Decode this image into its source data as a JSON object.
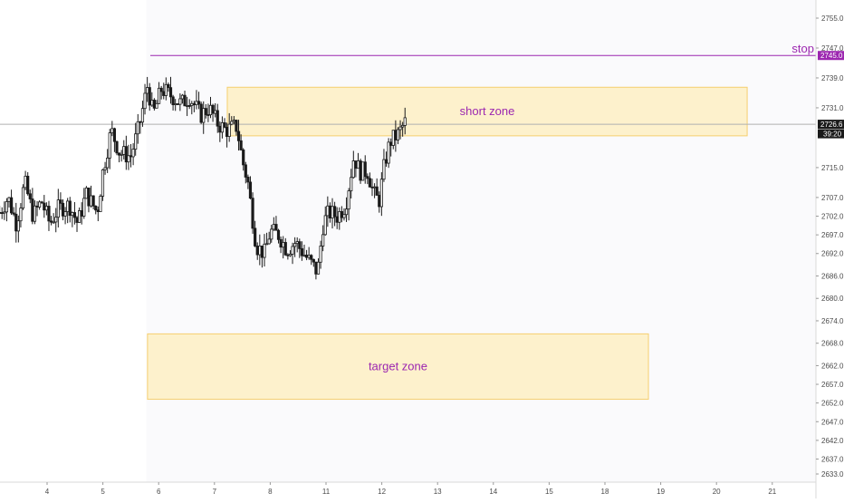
{
  "chart_data": {
    "type": "candlestick",
    "colors": {
      "background": "#ffffff",
      "candle": "#1a1a1a",
      "zone_fill": "#fdeec3",
      "zone_border": "#f5cf70",
      "stop_line": "#9c27b0",
      "current_price_line": "#b0b0b0",
      "price_tag_bg": "#1a1a1a",
      "stop_tag_bg": "#9c27b0",
      "axis_line": "#d9d9d9",
      "future_shade": "#fafafc"
    },
    "y_axis": {
      "range": [
        2630.0,
        2758.0
      ],
      "ticks": [
        "2755.0",
        "2747.0",
        "2739.0",
        "2731.0",
        "2715.0",
        "2707.0",
        "2702.0",
        "2697.0",
        "2692.0",
        "2686.0",
        "2680.0",
        "2674.0",
        "2668.0",
        "2662.0",
        "2657.0",
        "2652.0",
        "2647.0",
        "2642.0",
        "2637.0",
        "2633.0"
      ],
      "tick_values": [
        2755.0,
        2747.0,
        2739.0,
        2731.0,
        2715.0,
        2707.0,
        2702.0,
        2697.0,
        2692.0,
        2686.0,
        2680.0,
        2674.0,
        2668.0,
        2662.0,
        2657.0,
        2652.0,
        2647.0,
        2642.0,
        2637.0,
        2633.0
      ]
    },
    "x_axis": {
      "ticks": [
        "4",
        "5",
        "6",
        "7",
        "8",
        "11",
        "12",
        "13",
        "14",
        "15",
        "18",
        "19",
        "20",
        "21"
      ],
      "tick_positions": [
        0.0,
        1.0,
        2.0,
        3.0,
        4.0,
        5.0,
        6.0,
        7.0,
        8.0,
        9.0,
        10.0,
        11.0,
        12.0,
        13.0
      ],
      "range": [
        -0.85,
        13.5
      ]
    },
    "current_price": {
      "value": 2726.6,
      "label": "2726.6",
      "countdown": "39:20"
    },
    "stop": {
      "value": 2745.0,
      "label": "2745.0",
      "text": "stop",
      "x_start": 1.85
    },
    "zones": [
      {
        "name": "short zone",
        "x0": 3.23,
        "x1": 12.55,
        "y_top": 2736.5,
        "y_bottom": 2723.5
      },
      {
        "name": "target zone",
        "x0": 1.8,
        "x1": 10.78,
        "y_top": 2670.5,
        "y_bottom": 2653.0
      }
    ],
    "future_start_x": 1.78,
    "anchors": [
      [
        -0.85,
        2703.0
      ],
      [
        -0.7,
        2707.0
      ],
      [
        -0.55,
        2700.0
      ],
      [
        -0.4,
        2711.0
      ],
      [
        -0.25,
        2702.0
      ],
      [
        -0.1,
        2706.0
      ],
      [
        0.05,
        2700.0
      ],
      [
        0.2,
        2704.0
      ],
      [
        0.4,
        2705.0
      ],
      [
        0.55,
        2700.0
      ],
      [
        0.7,
        2708.0
      ],
      [
        0.9,
        2703.0
      ],
      [
        1.0,
        2714.0
      ],
      [
        1.15,
        2725.0
      ],
      [
        1.3,
        2719.0
      ],
      [
        1.5,
        2718.0
      ],
      [
        1.65,
        2726.0
      ],
      [
        1.8,
        2737.0
      ],
      [
        1.9,
        2729.0
      ],
      [
        2.05,
        2736.0
      ],
      [
        2.25,
        2734.0
      ],
      [
        2.4,
        2732.0
      ],
      [
        2.55,
        2734.0
      ],
      [
        2.75,
        2729.0
      ],
      [
        2.9,
        2731.0
      ],
      [
        3.05,
        2727.0
      ],
      [
        3.2,
        2725.0
      ],
      [
        3.4,
        2726.0
      ],
      [
        3.5,
        2717.0
      ],
      [
        3.6,
        2711.0
      ],
      [
        3.75,
        2694.0
      ],
      [
        3.9,
        2692.0
      ],
      [
        4.0,
        2698.0
      ],
      [
        4.15,
        2697.0
      ],
      [
        4.3,
        2693.0
      ],
      [
        4.45,
        2695.0
      ],
      [
        4.6,
        2692.0
      ],
      [
        4.7,
        2690.0
      ],
      [
        4.85,
        2687.0
      ],
      [
        4.95,
        2700.0
      ],
      [
        5.05,
        2703.0
      ],
      [
        5.2,
        2702.0
      ],
      [
        5.35,
        2705.0
      ],
      [
        5.5,
        2718.0
      ],
      [
        5.6,
        2714.0
      ],
      [
        5.75,
        2714.0
      ],
      [
        5.85,
        2708.0
      ],
      [
        5.95,
        2706.0
      ],
      [
        6.05,
        2716.0
      ],
      [
        6.15,
        2722.0
      ],
      [
        6.3,
        2724.0
      ],
      [
        6.45,
        2728.0
      ]
    ]
  }
}
